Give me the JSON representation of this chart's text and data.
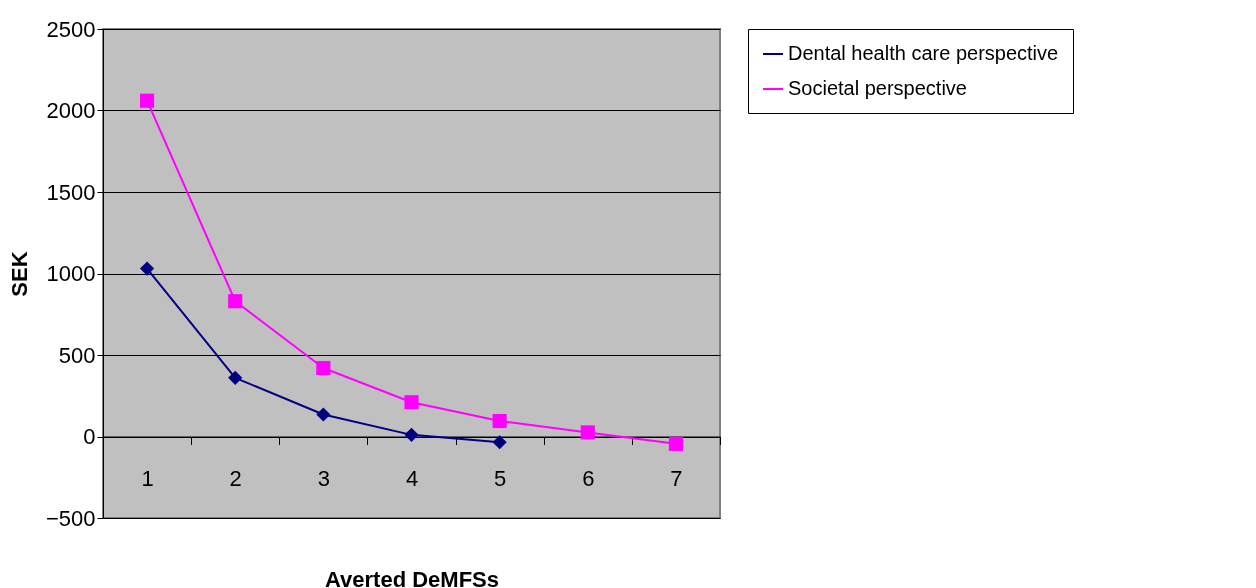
{
  "chart_data": {
    "type": "line",
    "xlabel": "Averted DeMFSs",
    "ylabel": "SEK",
    "categories": [
      "1",
      "2",
      "3",
      "4",
      "5",
      "6",
      "7"
    ],
    "series": [
      {
        "name": "Dental health care perspective",
        "color": "#000080",
        "marker": "diamond",
        "values": [
          1030,
          360,
          135,
          10,
          -35,
          null,
          null
        ]
      },
      {
        "name": "Societal perspective",
        "color": "#ff00ff",
        "marker": "square",
        "values": [
          2060,
          830,
          420,
          210,
          95,
          25,
          -45
        ]
      }
    ],
    "ylim": [
      -500,
      2500
    ],
    "yticks": [
      -500,
      0,
      500,
      1000,
      1500,
      2000,
      2500
    ],
    "grid": "y",
    "legend": "right"
  }
}
